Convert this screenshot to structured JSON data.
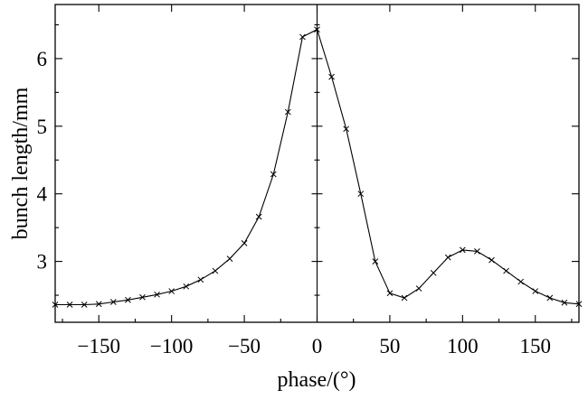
{
  "chart_data": {
    "type": "line",
    "xlabel": "phase/(°)",
    "ylabel": "bunch length/mm",
    "xlim": [
      -180,
      180
    ],
    "ylim": [
      2.1,
      6.8
    ],
    "xticks": [
      -150,
      -100,
      -50,
      0,
      50,
      100,
      150
    ],
    "xtick_labels": [
      "−150",
      "−100",
      "−50",
      "0",
      "50",
      "100",
      "150"
    ],
    "yticks": [
      3,
      4,
      5,
      6
    ],
    "ytick_labels": [
      "3",
      "4",
      "5",
      "6"
    ],
    "grid": false,
    "legend": "none",
    "line_color": "#000000",
    "marker": "x",
    "series": [
      {
        "x": [
          -180,
          -170,
          -160,
          -150,
          -140,
          -130,
          -120,
          -110,
          -100,
          -90,
          -80,
          -70,
          -60,
          -50,
          -40,
          -30,
          -20,
          -10,
          0,
          10,
          20,
          30,
          40,
          50,
          60,
          70,
          80,
          90,
          100,
          110,
          120,
          130,
          140,
          150,
          160,
          170,
          180
        ],
        "y": [
          2.36,
          2.36,
          2.36,
          2.37,
          2.4,
          2.43,
          2.47,
          2.51,
          2.56,
          2.63,
          2.73,
          2.86,
          3.04,
          3.27,
          3.66,
          4.29,
          5.21,
          6.32,
          6.43,
          5.73,
          4.96,
          4.0,
          3.0,
          2.53,
          2.46,
          2.6,
          2.83,
          3.06,
          3.17,
          3.15,
          3.02,
          2.86,
          2.7,
          2.56,
          2.46,
          2.39,
          2.37
        ]
      }
    ]
  }
}
